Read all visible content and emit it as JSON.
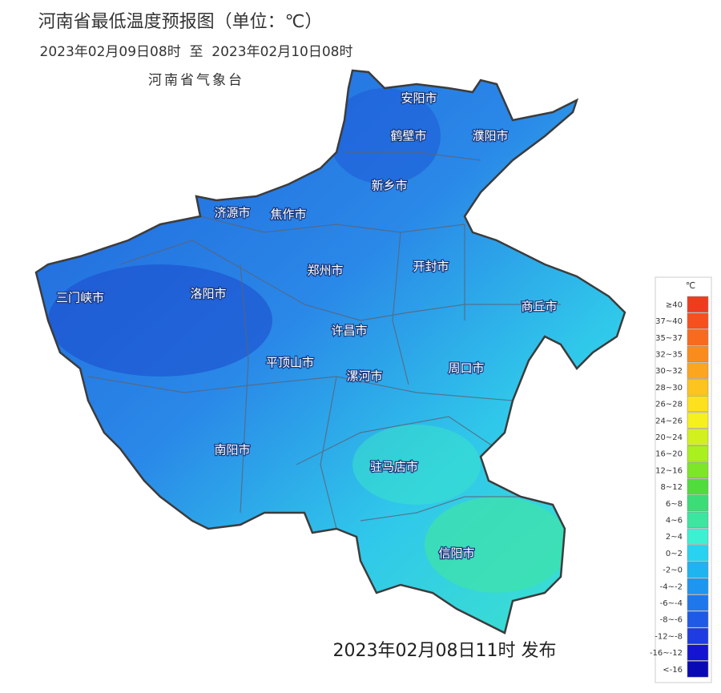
{
  "header": {
    "title": "河南省最低温度预报图（单位：℃）",
    "period": "2023年02月09日08时  至  2023年02月10日08时",
    "agency": "河南省气象台"
  },
  "cities": [
    "安阳市",
    "鹤壁市",
    "濮阳市",
    "新乡市",
    "济源市",
    "焦作市",
    "郑州市",
    "开封市",
    "三门峡市",
    "洛阳市",
    "商丘市",
    "许昌市",
    "平顶山市",
    "漯河市",
    "周口市",
    "南阳市",
    "驻马店市",
    "信阳市"
  ],
  "legend": {
    "unit": "℃",
    "items": [
      {
        "label": "≥40",
        "color": "#f03c1e"
      },
      {
        "label": "37~40",
        "color": "#f5501e"
      },
      {
        "label": "35~37",
        "color": "#f86a1e"
      },
      {
        "label": "32~35",
        "color": "#fa8c1e"
      },
      {
        "label": "30~32",
        "color": "#fca51e"
      },
      {
        "label": "28~30",
        "color": "#fdc31e"
      },
      {
        "label": "26~28",
        "color": "#fde11e"
      },
      {
        "label": "24~26",
        "color": "#f5f01e"
      },
      {
        "label": "20~24",
        "color": "#d2f01e"
      },
      {
        "label": "16~20",
        "color": "#aaf01e"
      },
      {
        "label": "12~16",
        "color": "#7de628"
      },
      {
        "label": "8~12",
        "color": "#50dc3c"
      },
      {
        "label": "6~8",
        "color": "#3cdc78"
      },
      {
        "label": "4~6",
        "color": "#3ce6a0"
      },
      {
        "label": "2~4",
        "color": "#3cf0d2"
      },
      {
        "label": "0~2",
        "color": "#28d2f0"
      },
      {
        "label": "-2~0",
        "color": "#1eb4f0"
      },
      {
        "label": "-4~-2",
        "color": "#1e96f0"
      },
      {
        "label": "-6~-4",
        "color": "#1e78eb"
      },
      {
        "label": "-8~-6",
        "color": "#1e5ae6"
      },
      {
        "label": "-12~-8",
        "color": "#1e3ce1"
      },
      {
        "label": "-16~-12",
        "color": "#1414d2"
      },
      {
        "label": "<-16",
        "color": "#0a0ab4"
      }
    ]
  },
  "footer": {
    "issued": "2023年02月08日11时 发布"
  }
}
